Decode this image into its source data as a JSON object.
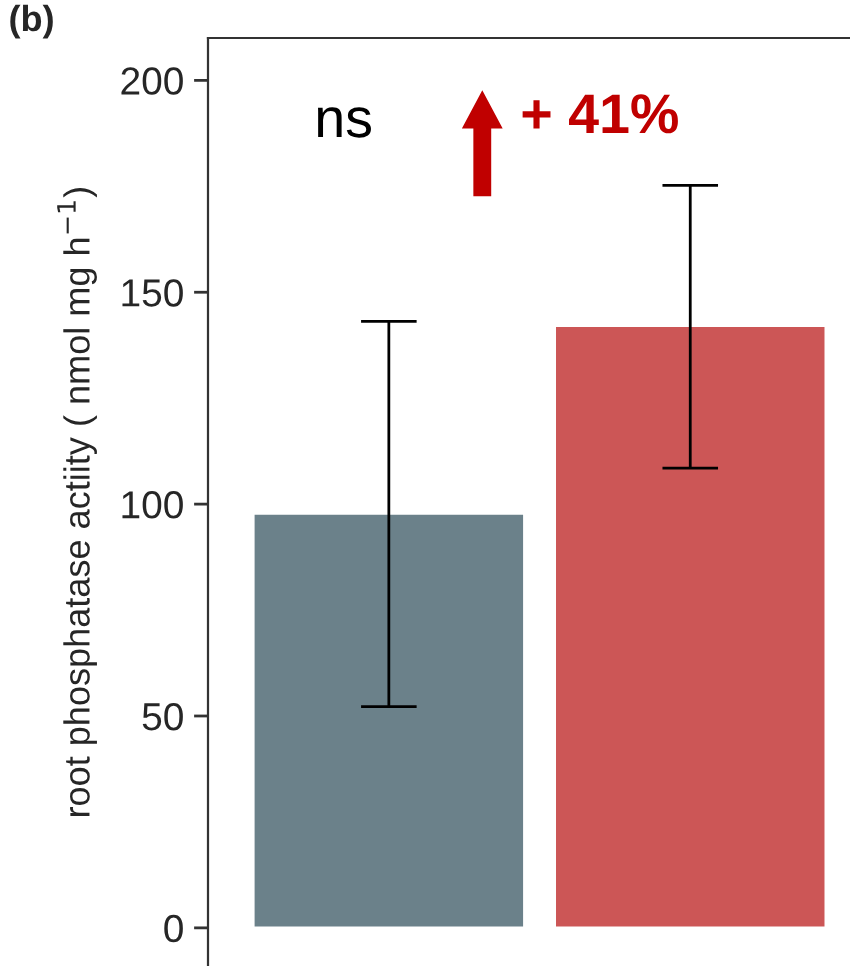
{
  "chart_data": {
    "type": "bar",
    "title": "(b)",
    "ylabel": "root phosphatase actiity ( nmol mg h$^{−1}$)",
    "categories": [
      null,
      null
    ],
    "values": [
      97.8,
      142.1
    ],
    "errors": [
      [
        52.2,
        143.1
      ],
      [
        108.5,
        175.2
      ]
    ],
    "colors": [
      "#6b818a",
      "#cc5656"
    ],
    "ylim": [
      -9,
      210
    ],
    "yticks": [
      0,
      50,
      100,
      150,
      200
    ],
    "grid": false,
    "tick_labels": "y",
    "annotations": [
      "ns",
      "+ 41%"
    ]
  }
}
